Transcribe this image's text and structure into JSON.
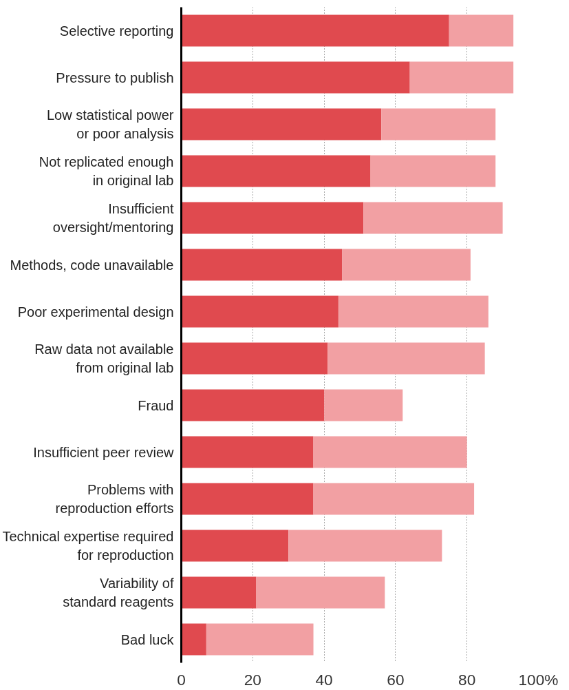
{
  "chart_data": {
    "type": "bar",
    "orientation": "horizontal",
    "stacked": true,
    "categories": [
      "Selective reporting",
      "Pressure to publish",
      "Low statistical power\nor poor analysis",
      "Not replicated enough\nin original lab",
      "Insufficient\noversight/mentoring",
      "Methods, code unavailable",
      "Poor experimental design",
      "Raw data not available\nfrom original lab",
      "Fraud",
      "Insufficient peer review",
      "Problems with\nreproduction efforts",
      "Technical expertise required\nfor reproduction",
      "Variability of\nstandard reagents",
      "Bad luck"
    ],
    "series": [
      {
        "color": "#e04a4f",
        "values": [
          75,
          64,
          56,
          53,
          51,
          45,
          44,
          41,
          40,
          37,
          37,
          30,
          21,
          7
        ]
      },
      {
        "color": "#f2a0a3",
        "values": [
          18,
          29,
          32,
          35,
          39,
          36,
          42,
          44,
          22,
          43,
          45,
          43,
          36,
          30
        ]
      }
    ],
    "xlim": [
      0,
      100
    ],
    "xticks": [
      0,
      20,
      40,
      60,
      80,
      {
        "value": 100,
        "label": "100%"
      }
    ],
    "grid": "x"
  }
}
